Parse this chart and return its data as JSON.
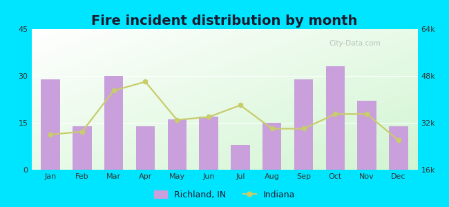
{
  "title": "Fire incident distribution by month",
  "months": [
    "Jan",
    "Feb",
    "Mar",
    "Apr",
    "May",
    "Jun",
    "Jul",
    "Aug",
    "Sep",
    "Oct",
    "Nov",
    "Dec"
  ],
  "bar_values": [
    29,
    14,
    30,
    14,
    16,
    17,
    8,
    15,
    29,
    33,
    22,
    14
  ],
  "line_values": [
    28000,
    29000,
    43000,
    46000,
    33000,
    34000,
    38000,
    30000,
    30000,
    35000,
    35000,
    26000
  ],
  "bar_color": "#c9a0dc",
  "line_color": "#c8cc6a",
  "line_marker": "o",
  "ylim_left": [
    0,
    45
  ],
  "ylim_right": [
    16000,
    64000
  ],
  "yticks_left": [
    0,
    15,
    30,
    45
  ],
  "yticks_right": [
    16000,
    32000,
    48000,
    64000
  ],
  "ytick_labels_right": [
    "16k",
    "32k",
    "48k",
    "64k"
  ],
  "bg_color_fig": "#00e5ff",
  "legend_label_bar": "Richland, IN",
  "legend_label_line": "Indiana",
  "title_fontsize": 14,
  "watermark": "City-Data.com"
}
